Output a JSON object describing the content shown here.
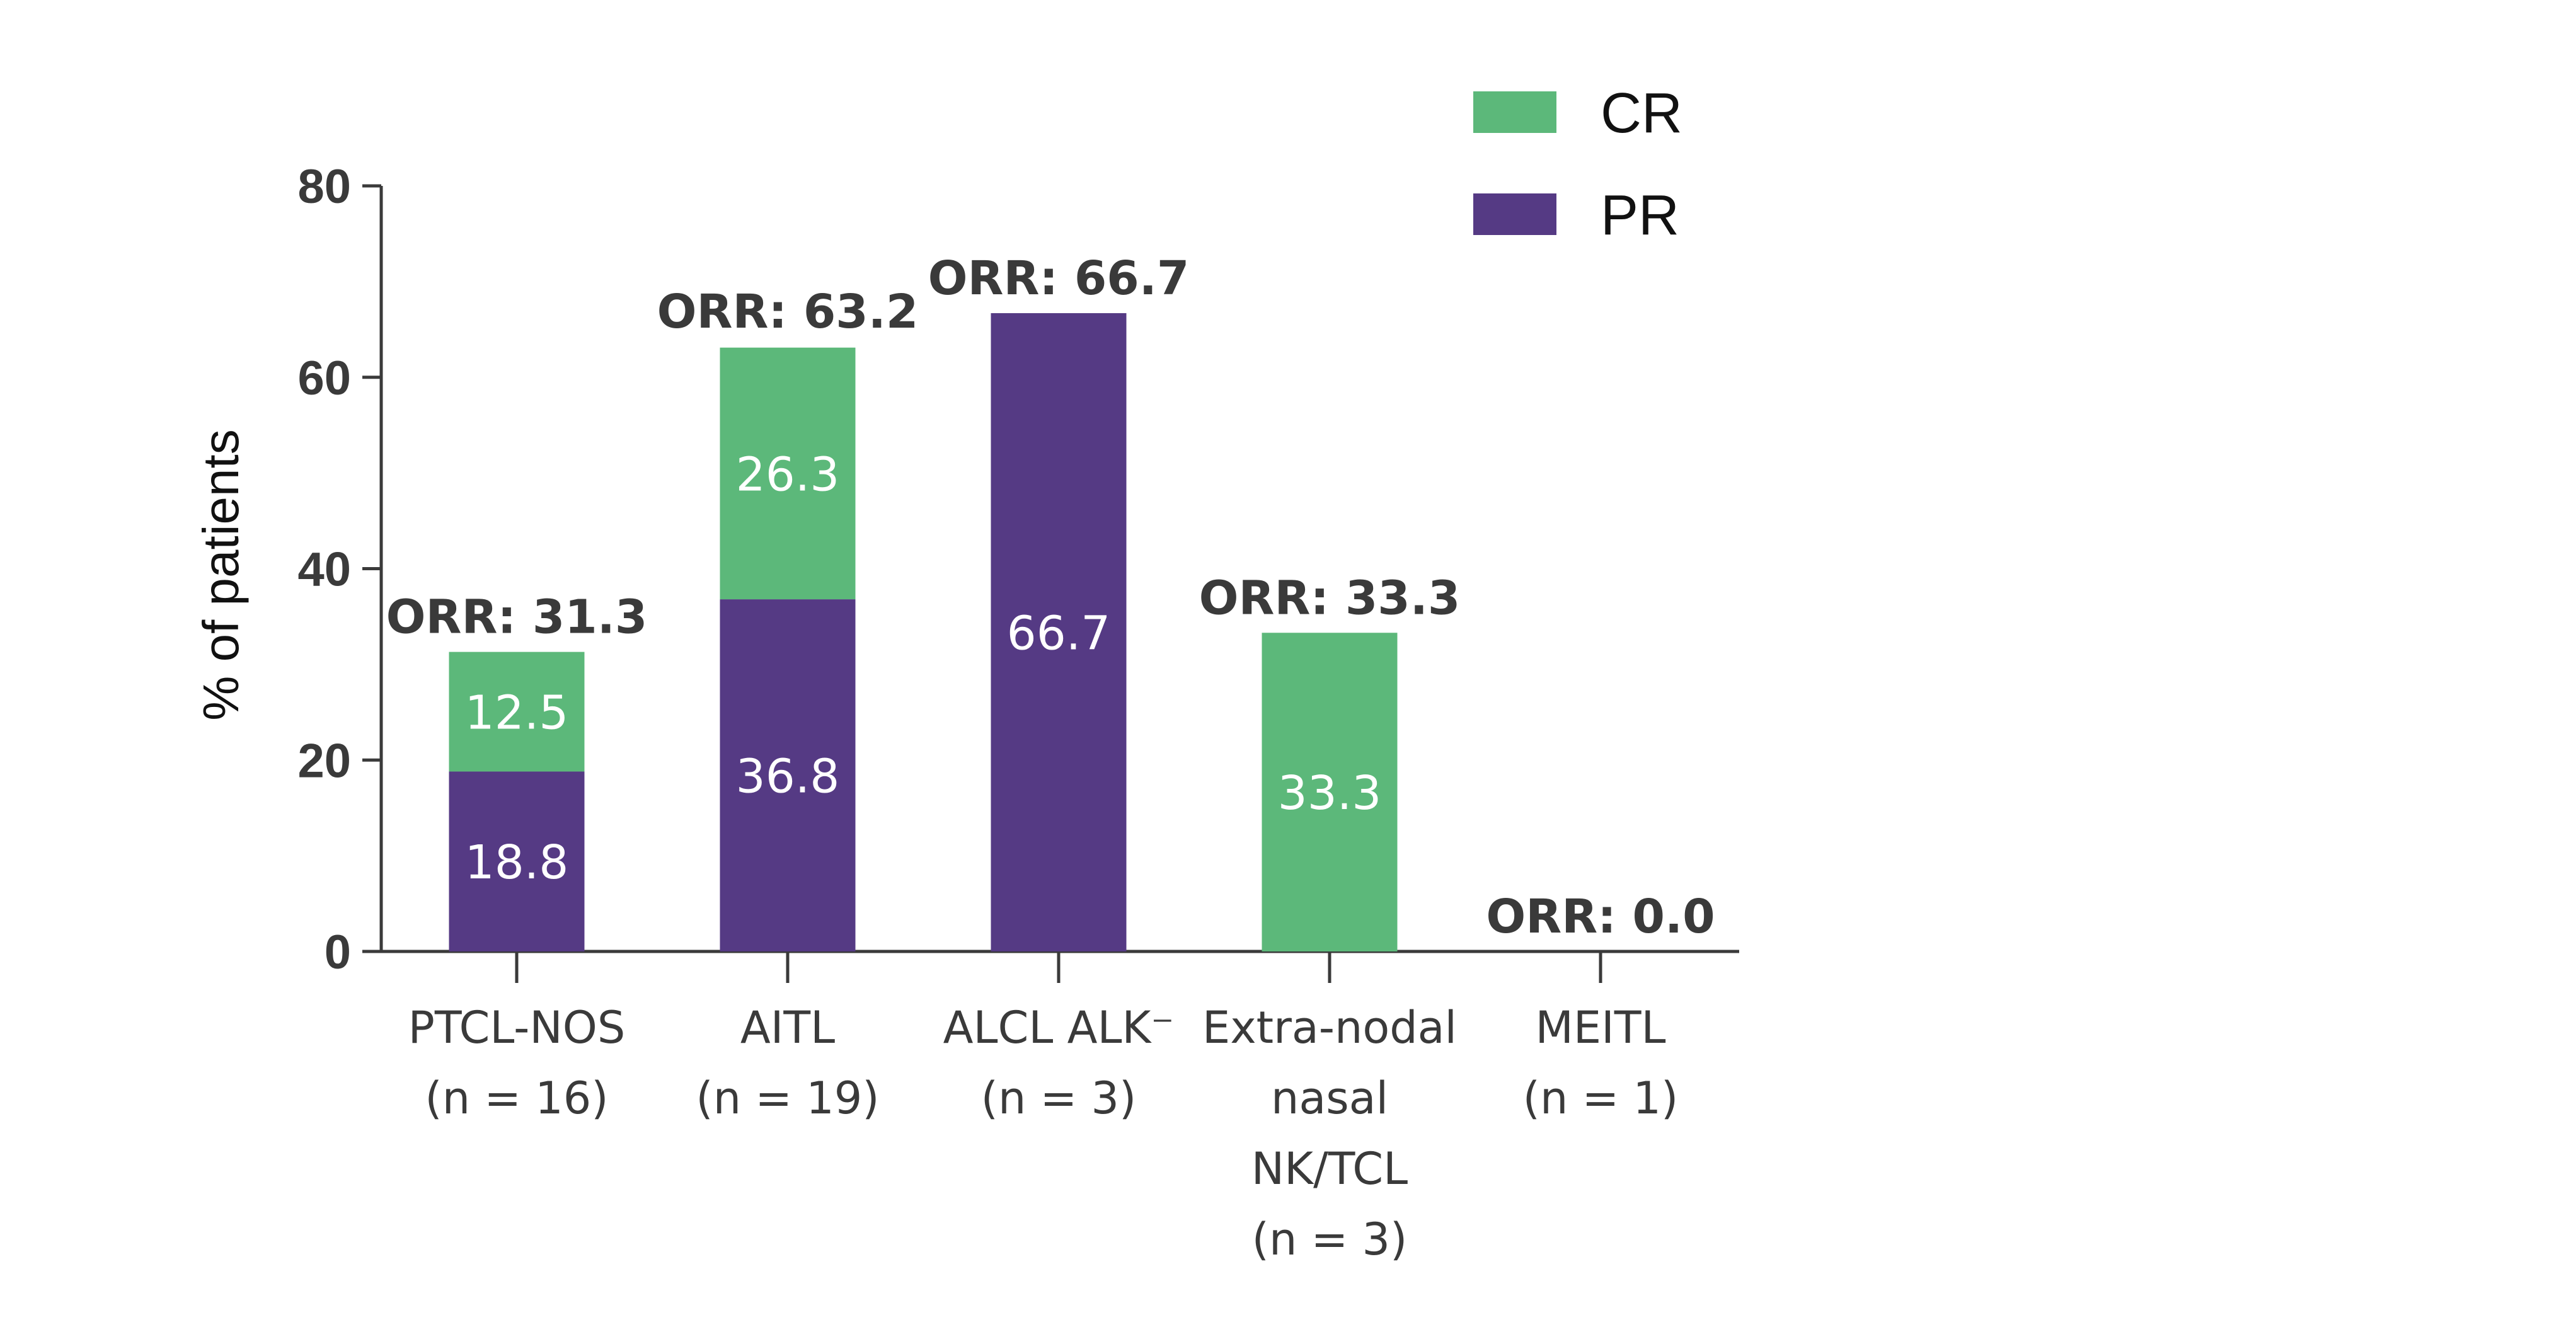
{
  "chart_data": {
    "type": "bar",
    "stacked": true,
    "categories": [
      [
        "PTCL-NOS",
        "(n = 16)"
      ],
      [
        "AITL",
        "(n = 19)"
      ],
      [
        "ALCL ALK⁻",
        "(n = 3)"
      ],
      [
        "Extra-nodal",
        "nasal",
        "NK/TCL",
        "(n = 3)"
      ],
      [
        "MEITL",
        "(n = 1)"
      ]
    ],
    "series": [
      {
        "name": "PR",
        "color": "#553a84",
        "values": [
          18.8,
          36.8,
          66.7,
          0,
          0
        ],
        "labels": [
          "18.8",
          "36.8",
          "66.7",
          "",
          ""
        ]
      },
      {
        "name": "CR",
        "color": "#5cb87a",
        "values": [
          12.5,
          26.3,
          0,
          33.3,
          0
        ],
        "labels": [
          "12.5",
          "26.3",
          "",
          "33.3",
          ""
        ]
      }
    ],
    "totals": [
      31.3,
      63.2,
      66.7,
      33.3,
      0.0
    ],
    "total_labels": [
      "ORR: 31.3",
      "ORR: 63.2",
      "ORR: 66.7",
      "ORR: 33.3",
      "ORR: 0.0"
    ],
    "ylabel": "% of patients",
    "xlabel": "",
    "title": "",
    "ylim": [
      0,
      80
    ],
    "yticks": [
      0,
      20,
      40,
      60,
      80
    ],
    "legend": {
      "placement": "top-right",
      "order": [
        "CR",
        "PR"
      ]
    },
    "grid": false
  }
}
